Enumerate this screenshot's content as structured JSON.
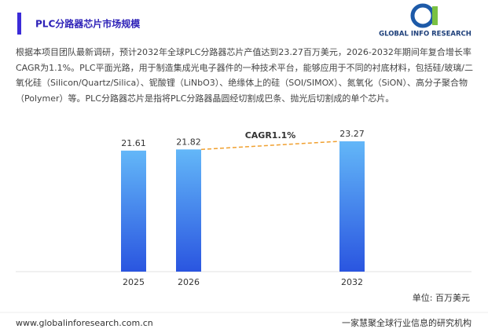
{
  "header": {
    "title": "PLC分路器芯片市场规模",
    "logo": "GLOBAL INFO RESEARCH"
  },
  "description": "根据本项目团队最新调研，预计2032年全球PLC分路器芯片产值达到23.27百万美元，2026-2032年期间年复合增长率CAGR为1.1%。PLC平面光路，用于制造集成光电子器件的一种技术平台，能够应用于不同的衬底材料，包括硅/玻璃/二氧化硅（Silicon/Quartz/Silica）、铌酸锂（LiNbO3）、绝缘体上的硅（SOI/SIMOX）、氮氧化（SiON）、高分子聚合物（Polymer）等。PLC分路器芯片是指将PLC分路器晶圆经切割成巴条、抛光后切割成的单个芯片。",
  "chart_data": {
    "type": "bar",
    "categories": [
      "2025",
      "2026",
      "2032"
    ],
    "values": [
      21.61,
      21.82,
      23.27
    ],
    "color": "#2f6ae8",
    "annotation": "CAGR1.1%",
    "unit": "单位: 百万美元"
  },
  "footer": {
    "url": "www.globalinforesearch.com.cn",
    "slogan": "一家慧聚全球行业信息的研究机构"
  }
}
